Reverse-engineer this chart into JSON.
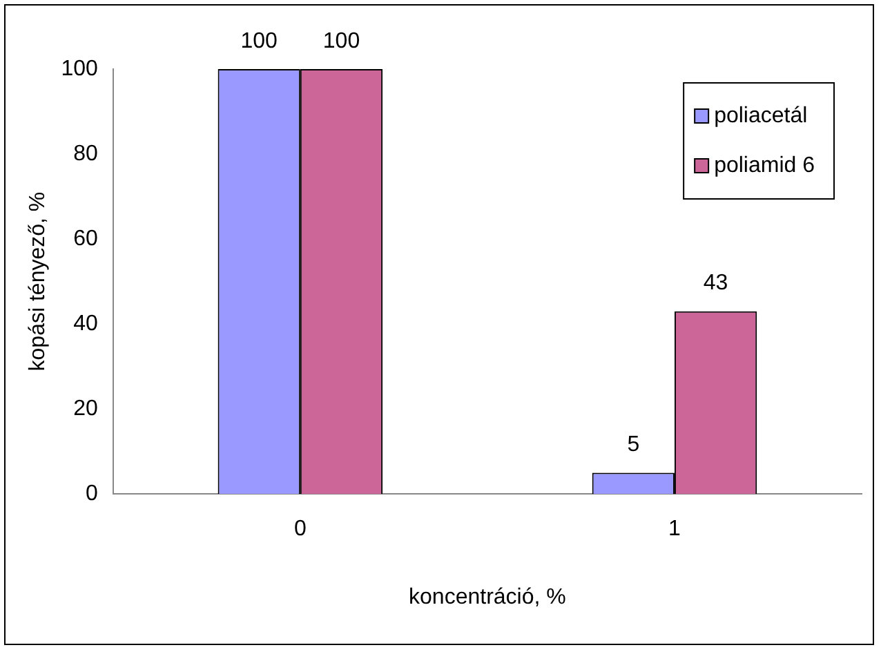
{
  "chart_data": {
    "type": "bar",
    "xlabel": "koncentráció, %",
    "ylabel": "kopási tényező, %",
    "categories": [
      "0",
      "1"
    ],
    "series": [
      {
        "name": "poliacetál",
        "color": "#9999ff",
        "values": [
          100,
          5
        ]
      },
      {
        "name": "poliamid 6",
        "color": "#cc6699",
        "values": [
          100,
          43
        ]
      }
    ],
    "ylim": [
      0,
      100
    ],
    "yticks": [
      0,
      20,
      40,
      60,
      80,
      100
    ],
    "grid": false,
    "legend": "top right",
    "data_labels": true
  }
}
